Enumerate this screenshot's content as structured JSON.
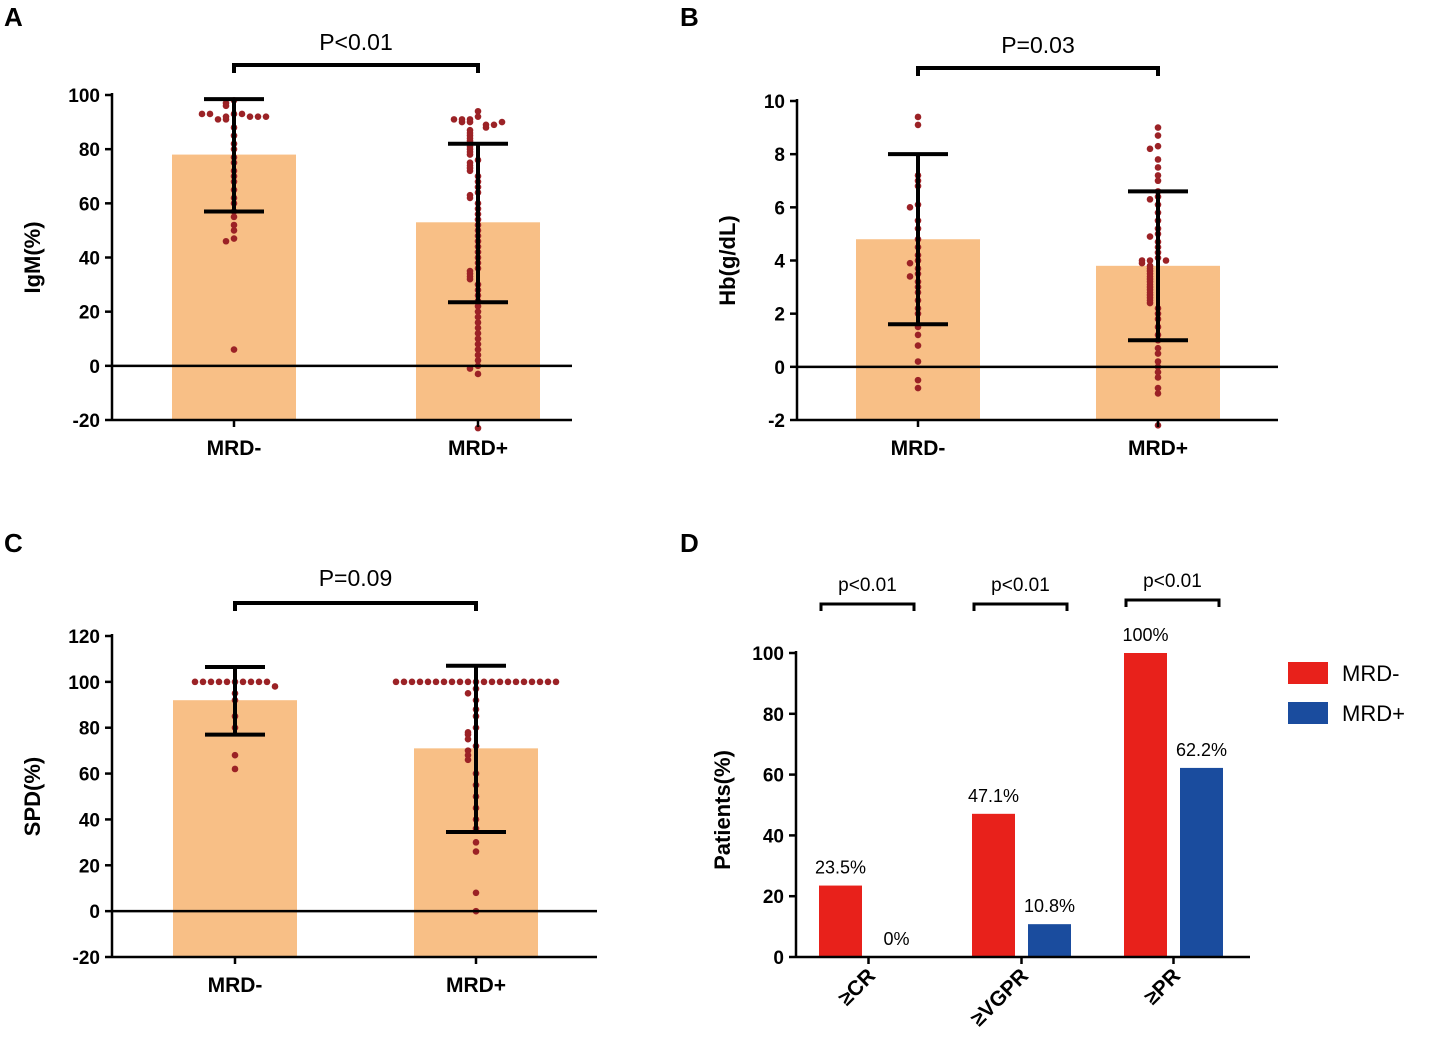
{
  "chart_data": [
    {
      "panel": "A",
      "type": "bar",
      "ylabel": "IgM(%)",
      "ylim": [
        -20,
        100
      ],
      "yticks": [
        -20,
        0,
        20,
        40,
        60,
        80,
        100
      ],
      "categories": [
        "MRD-",
        "MRD+"
      ],
      "values": [
        78,
        53
      ],
      "error_low": [
        57,
        23.5
      ],
      "error_high": [
        98.5,
        82
      ],
      "significance": "P<0.01",
      "bar_color": "#f8bf86",
      "dot_color": "#9b2226",
      "points": [
        [
          93,
          92,
          91,
          93,
          92,
          91,
          92,
          93,
          92,
          93,
          98,
          97,
          96,
          88,
          85,
          82,
          80,
          77,
          75,
          72,
          70,
          68,
          65,
          62,
          60,
          57,
          55,
          52,
          50,
          47,
          46,
          6
        ],
        [
          94,
          92,
          91,
          90,
          91,
          90,
          89,
          91,
          90,
          89,
          88,
          87,
          86,
          85,
          84,
          83,
          82,
          81,
          80,
          79,
          78,
          76,
          75,
          74,
          73,
          72,
          70,
          68,
          66,
          64,
          63,
          62,
          60,
          58,
          56,
          54,
          52,
          50,
          48,
          46,
          44,
          42,
          40,
          38,
          36,
          35,
          34,
          33,
          32,
          30,
          28,
          26,
          24,
          22,
          20,
          18,
          16,
          14,
          12,
          10,
          8,
          6,
          4,
          2,
          0,
          -1,
          -3,
          -23
        ]
      ]
    },
    {
      "panel": "B",
      "type": "bar",
      "ylabel": "Hb(g/dL)",
      "ylim": [
        -2,
        10
      ],
      "yticks": [
        -2,
        0,
        2,
        4,
        6,
        8,
        10
      ],
      "categories": [
        "MRD-",
        "MRD+"
      ],
      "values": [
        4.8,
        3.8
      ],
      "error_low": [
        1.6,
        1.0
      ],
      "error_high": [
        8.0,
        6.6
      ],
      "significance": "P=0.03",
      "bar_color": "#f8bf86",
      "dot_color": "#9b2226",
      "points": [
        [
          9.4,
          9.1,
          7.2,
          7.0,
          6.8,
          6.1,
          6.0,
          5.5,
          5.2,
          4.8,
          4.5,
          4.2,
          4.0,
          3.9,
          3.7,
          3.5,
          3.4,
          3.2,
          3.0,
          2.8,
          2.5,
          2.2,
          2.0,
          1.5,
          1.2,
          0.8,
          0.2,
          -0.5,
          -0.8
        ],
        [
          9.0,
          8.7,
          8.3,
          8.2,
          7.8,
          7.5,
          7.2,
          7.0,
          6.6,
          6.4,
          6.3,
          6.1,
          5.8,
          5.5,
          5.2,
          5.0,
          4.9,
          4.7,
          4.5,
          4.3,
          4.1,
          4.0,
          4.0,
          4.0,
          3.9,
          3.8,
          3.7,
          3.6,
          3.5,
          3.4,
          3.3,
          3.2,
          3.1,
          3.0,
          2.9,
          2.8,
          2.7,
          2.6,
          2.5,
          2.4,
          2.2,
          2.0,
          1.8,
          1.5,
          1.2,
          1.0,
          0.7,
          0.5,
          0.2,
          0.0,
          -0.2,
          -0.4,
          -0.8,
          -1.0,
          -2.2
        ]
      ]
    },
    {
      "panel": "C",
      "type": "bar",
      "ylabel": "SPD(%)",
      "ylim": [
        -20,
        120
      ],
      "yticks": [
        -20,
        0,
        20,
        40,
        60,
        80,
        100,
        120
      ],
      "categories": [
        "MRD-",
        "MRD+"
      ],
      "values": [
        92,
        71
      ],
      "error_low": [
        77,
        34.5
      ],
      "error_high": [
        106.5,
        107
      ],
      "significance": "P=0.09",
      "bar_color": "#f8bf86",
      "dot_color": "#9b2226",
      "points": [
        [
          100,
          100,
          100,
          100,
          100,
          100,
          100,
          100,
          100,
          100,
          98,
          95,
          92,
          85,
          80,
          68,
          62
        ],
        [
          100,
          100,
          100,
          100,
          100,
          100,
          100,
          100,
          100,
          100,
          100,
          100,
          100,
          100,
          100,
          100,
          100,
          100,
          100,
          100,
          100,
          97,
          95,
          92,
          88,
          85,
          80,
          78,
          77,
          75,
          72,
          70,
          68,
          66,
          60,
          55,
          50,
          45,
          40,
          36,
          30,
          26,
          8,
          0
        ]
      ]
    },
    {
      "panel": "D",
      "type": "bar",
      "ylabel": "Patients(%)",
      "ylim": [
        0,
        100
      ],
      "yticks": [
        0,
        20,
        40,
        60,
        80,
        100
      ],
      "categories": [
        "≥CR",
        "≥VGPR",
        "≥PR"
      ],
      "series": [
        {
          "name": "MRD-",
          "color": "#e8211b",
          "values": [
            23.5,
            47.1,
            100
          ],
          "labels": [
            "23.5%",
            "47.1%",
            "100%"
          ]
        },
        {
          "name": "MRD+",
          "color": "#1a4c9e",
          "values": [
            0,
            10.8,
            62.2
          ],
          "labels": [
            "0%",
            "10.8%",
            "62.2%"
          ]
        }
      ],
      "significance": [
        "p<0.01",
        "p<0.01",
        "p<0.01"
      ],
      "legend": "right"
    }
  ]
}
